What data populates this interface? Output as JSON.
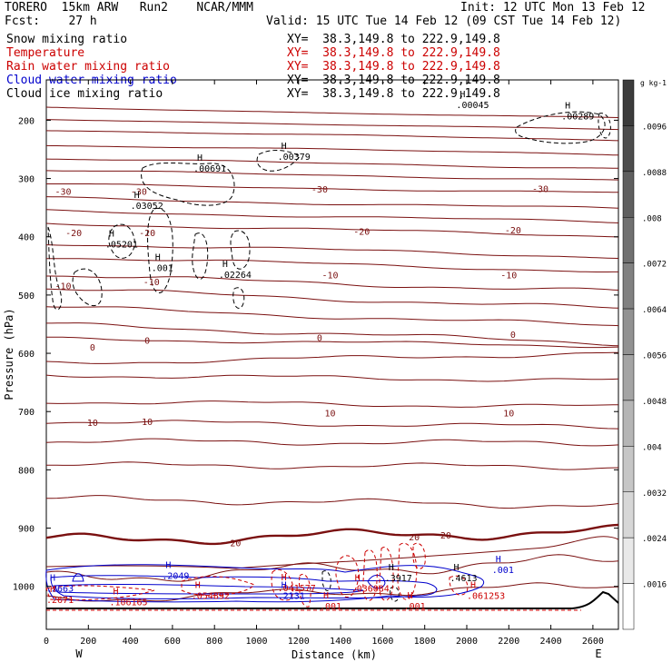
{
  "header": {
    "title_left": "TORERO  15km ARW   Run2    NCAR/MMM",
    "init": "Init: 12 UTC Mon 13 Feb 12",
    "fcst": "Fcst:    27 h",
    "valid": "Valid: 15 UTC Tue 14 Feb 12 (09 CST Tue 14 Feb 12)"
  },
  "fields": [
    {
      "name": "Snow mixing ratio",
      "xy": "XY=  38.3,149.8 to 222.9,149.8",
      "color": "#000000",
      "xy_color": "#000000"
    },
    {
      "name": "Temperature",
      "xy": "XY=  38.3,149.8 to 222.9,149.8",
      "color": "#cc0000",
      "xy_color": "#cc0000"
    },
    {
      "name": "Rain water mixing ratio",
      "xy": "XY=  38.3,149.8 to 222.9,149.8",
      "color": "#cc0000",
      "xy_color": "#cc0000"
    },
    {
      "name": "Cloud water mixing ratio",
      "xy": "XY=  38.3,149.8 to 222.9,149.8",
      "color": "#0000cc",
      "xy_color": "#000000"
    },
    {
      "name": "Cloud ice mixing ratio",
      "xy": "XY=  38.3,149.8 to 222.9,149.8",
      "color": "#000000",
      "xy_color": "#000000"
    }
  ],
  "chart_data": {
    "type": "cross-section contour",
    "xlabel": "Distance (km)",
    "ylabel": "Pressure (hPa)",
    "xlim": [
      0,
      2750
    ],
    "ylim": [
      1050,
      130
    ],
    "x_ticks": [
      0,
      200,
      400,
      600,
      800,
      1000,
      1200,
      1400,
      1600,
      1800,
      2000,
      2200,
      2400,
      2600
    ],
    "y_ticks": [
      200,
      300,
      400,
      500,
      600,
      700,
      800,
      900,
      1000
    ],
    "endpoint_left": "W",
    "endpoint_right": "E",
    "colorbar": {
      "unit": "g kg-1",
      "labels": [
        ".0096",
        ".0088",
        ".008",
        ".0072",
        ".0064",
        ".0056",
        ".0048",
        ".004",
        ".0032",
        ".0024",
        ".0016"
      ]
    },
    "temperature_labels": [
      {
        "text": "-30",
        "x": 80,
        "p": 322
      },
      {
        "text": "-30",
        "x": 440,
        "p": 322
      },
      {
        "text": "-30",
        "x": 1300,
        "p": 318
      },
      {
        "text": "-30",
        "x": 2350,
        "p": 317
      },
      {
        "text": "-20",
        "x": 130,
        "p": 393
      },
      {
        "text": "-20",
        "x": 480,
        "p": 393
      },
      {
        "text": "-20",
        "x": 1500,
        "p": 390
      },
      {
        "text": "-20",
        "x": 2220,
        "p": 388
      },
      {
        "text": "-10",
        "x": 80,
        "p": 484
      },
      {
        "text": "-10",
        "x": 500,
        "p": 477
      },
      {
        "text": "-10",
        "x": 1350,
        "p": 465
      },
      {
        "text": "-10",
        "x": 2200,
        "p": 465
      },
      {
        "text": "0",
        "x": 220,
        "p": 589
      },
      {
        "text": "0",
        "x": 480,
        "p": 577
      },
      {
        "text": "0",
        "x": 1300,
        "p": 573
      },
      {
        "text": "0",
        "x": 2220,
        "p": 567
      },
      {
        "text": "10",
        "x": 220,
        "p": 718
      },
      {
        "text": "10",
        "x": 480,
        "p": 717
      },
      {
        "text": "10",
        "x": 1350,
        "p": 702
      },
      {
        "text": "10",
        "x": 2200,
        "p": 702
      },
      {
        "text": "20",
        "x": 900,
        "p": 925
      },
      {
        "text": "20",
        "x": 1750,
        "p": 915
      },
      {
        "text": "20",
        "x": 1900,
        "p": 912
      }
    ],
    "maxima_labels": [
      {
        "text": ".00045",
        "x": 1950,
        "p": 173,
        "color": "#000000"
      },
      {
        "text": ".00289",
        "x": 2450,
        "p": 192,
        "color": "#000000"
      },
      {
        "text": ".00379",
        "x": 1100,
        "p": 262,
        "color": "#000000"
      },
      {
        "text": ".00691",
        "x": 700,
        "p": 282,
        "color": "#000000"
      },
      {
        "text": ".03052",
        "x": 400,
        "p": 346,
        "color": "#000000"
      },
      {
        "text": ".05201",
        "x": 280,
        "p": 412,
        "color": "#000000"
      },
      {
        "text": ".001",
        "x": 500,
        "p": 453,
        "color": "#000000"
      },
      {
        "text": ".02264",
        "x": 820,
        "p": 464,
        "color": "#000000"
      },
      {
        "text": ".2049",
        "x": 550,
        "p": 981,
        "color": "#0000cc"
      },
      {
        "text": ".2663",
        "x": 0,
        "p": 1003,
        "color": "#0000cc"
      },
      {
        "text": ".2671",
        "x": 0,
        "p": 1022,
        "color": "#cc0000"
      },
      {
        "text": ".106165",
        "x": 300,
        "p": 1026,
        "color": "#cc0000"
      },
      {
        "text": ".054892",
        "x": 690,
        "p": 1015,
        "color": "#cc0000"
      },
      {
        "text": ".041577",
        "x": 1100,
        "p": 1002,
        "color": "#cc0000"
      },
      {
        "text": ".2131",
        "x": 1100,
        "p": 1015,
        "color": "#0000cc"
      },
      {
        "text": ".001",
        "x": 1300,
        "p": 1033,
        "color": "#cc0000"
      },
      {
        "text": ".036084",
        "x": 1450,
        "p": 1003,
        "color": "#cc0000"
      },
      {
        "text": ".3917",
        "x": 1610,
        "p": 985,
        "color": "#000000"
      },
      {
        "text": ".4613",
        "x": 1920,
        "p": 985,
        "color": "#000000"
      },
      {
        "text": ".001",
        "x": 2120,
        "p": 971,
        "color": "#0000cc"
      },
      {
        "text": ".061253",
        "x": 2000,
        "p": 1015,
        "color": "#cc0000"
      },
      {
        "text": ".001",
        "x": 1700,
        "p": 1033,
        "color": "#cc0000"
      }
    ]
  }
}
